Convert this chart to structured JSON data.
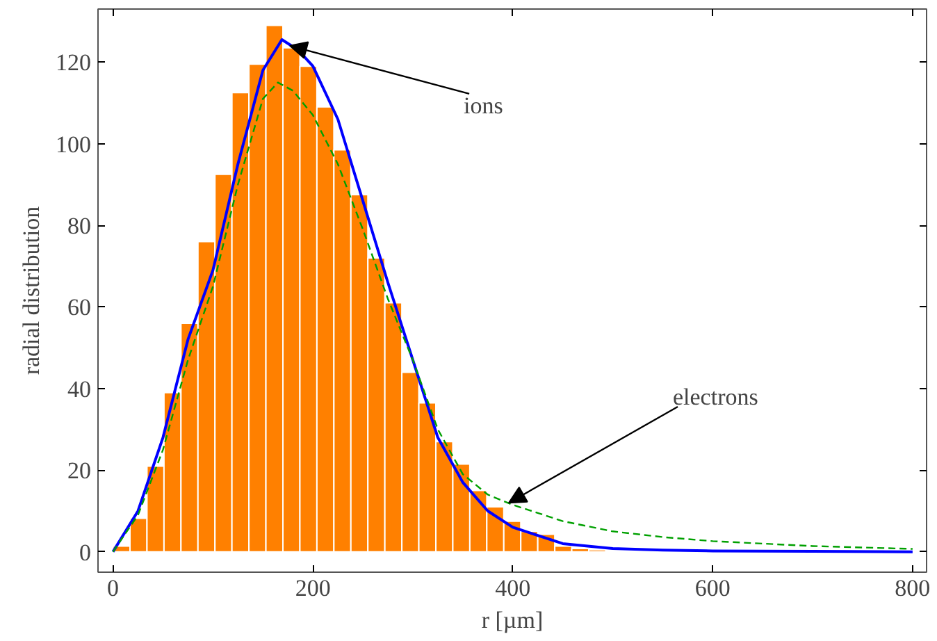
{
  "chart_data": {
    "type": "histogram",
    "xlabel": "r [µm]",
    "ylabel": "radial distribution",
    "bins": [
      0,
      17,
      34,
      51,
      68,
      85,
      102,
      119,
      136,
      153,
      170,
      187,
      204,
      221,
      238,
      255,
      272,
      289,
      306,
      323,
      340,
      357,
      374,
      391,
      408,
      425,
      442,
      459,
      476,
      493
    ],
    "values": [
      1.4,
      8.2,
      21,
      39,
      56,
      76,
      92.5,
      112.5,
      119.5,
      129,
      123.5,
      119,
      109,
      98.5,
      87.5,
      72,
      61,
      44,
      36.5,
      27,
      21.5,
      15,
      11,
      7.5,
      5,
      4.3,
      1.4,
      0.8,
      0.5
    ],
    "color": "#ff8000",
    "series": [
      {
        "type": "line",
        "color": "#0000ff",
        "line_style": "solid",
        "x": [
          0,
          25,
          50,
          75,
          100,
          125,
          150,
          169,
          185,
          200,
          225,
          250,
          275,
          300,
          325,
          350,
          375,
          400,
          450,
          500,
          550,
          600,
          700,
          800
        ],
        "values": [
          0,
          10,
          28,
          52,
          69,
          95,
          118,
          125.5,
          123,
          119,
          106,
          86,
          66,
          47,
          28,
          17,
          10,
          6,
          2,
          0.8,
          0.4,
          0.2,
          0.1,
          0
        ]
      },
      {
        "type": "line",
        "color": "#00a000",
        "line_style": "dashed",
        "x": [
          0,
          25,
          50,
          75,
          100,
          125,
          150,
          165,
          180,
          200,
          225,
          250,
          275,
          300,
          325,
          350,
          375,
          400,
          450,
          500,
          550,
          600,
          700,
          800
        ],
        "values": [
          0,
          9,
          25,
          47,
          65,
          90,
          111,
          115,
          113,
          107,
          95,
          79,
          62,
          47,
          30,
          19,
          14,
          11.5,
          7.5,
          5,
          3.6,
          2.6,
          1.4,
          0.7
        ]
      }
    ],
    "xlim": [
      -15,
      814
    ],
    "ylim": [
      -5,
      133
    ],
    "xticks": [
      0,
      200,
      400,
      600,
      800
    ],
    "yticks": [
      0,
      20,
      40,
      60,
      80,
      100,
      120
    ],
    "annotations": [
      {
        "text": "ions",
        "x": 177,
        "y": 124
      },
      {
        "text": "electrons",
        "x": 396,
        "y": 12
      }
    ]
  }
}
